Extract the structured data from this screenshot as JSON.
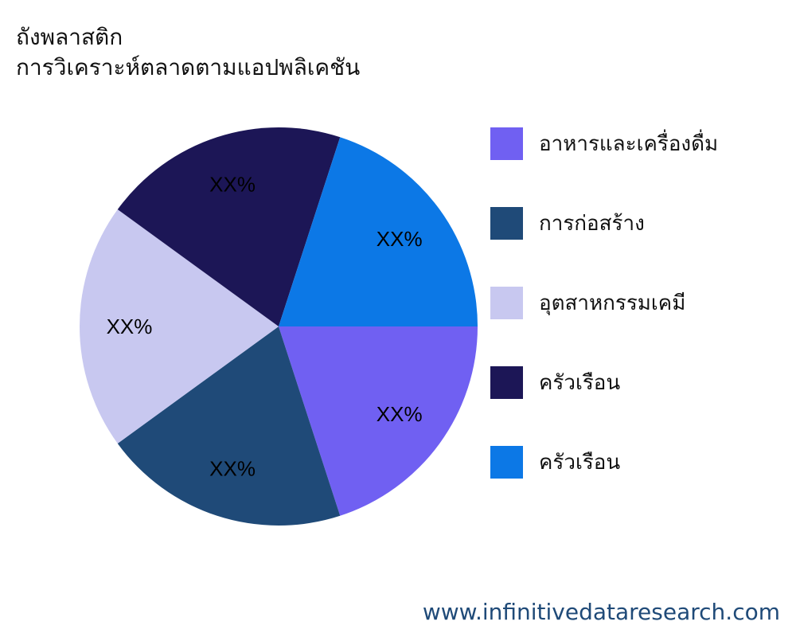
{
  "chart_data": {
    "type": "pie",
    "title": "ถังพลาสติก",
    "subtitle": "การวิเคราะห์ตลาดตามแอปพลิเคชัน",
    "categories": [
      "อาหารและเครื่องดื่ม",
      "การก่อสร้าง",
      "อุตสาหกรรมเคมี",
      "ครัวเรือน",
      "ครัวเรือน"
    ],
    "values": [
      20,
      20,
      20,
      20,
      20
    ],
    "data_labels": [
      "XX%",
      "XX%",
      "XX%",
      "XX%",
      "XX%"
    ],
    "colors": [
      "#7060f2",
      "#1f4a78",
      "#c8c8f0",
      "#1c1656",
      "#0c78e6"
    ],
    "legend_position": "right"
  },
  "watermark": "www.infinitivedataresearch.com"
}
